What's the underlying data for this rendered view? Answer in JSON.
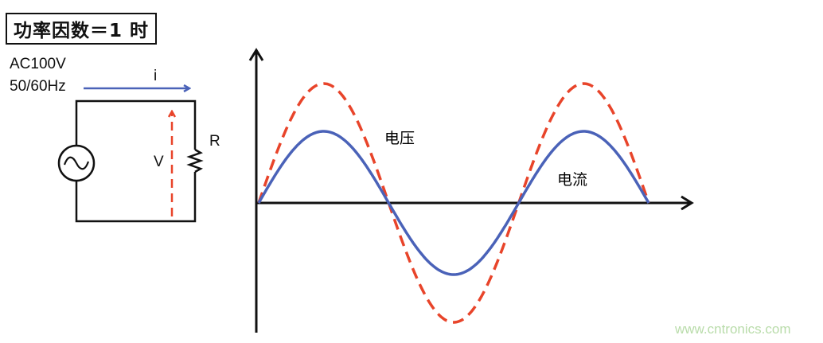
{
  "title": "功率因数＝1 时",
  "circuit": {
    "source_label_line1": "AC100V",
    "source_label_line2": "50/60Hz",
    "current_label": "i",
    "voltage_label": "V",
    "resistor_label": "R"
  },
  "waveforms": {
    "voltage_label": "电压",
    "current_label": "电流",
    "phase_difference_deg": 0,
    "cycles_shown": 1.5,
    "voltage_color": "#e8442a",
    "current_color": "#4a62b8"
  },
  "watermark": "www.cntronics.com"
}
